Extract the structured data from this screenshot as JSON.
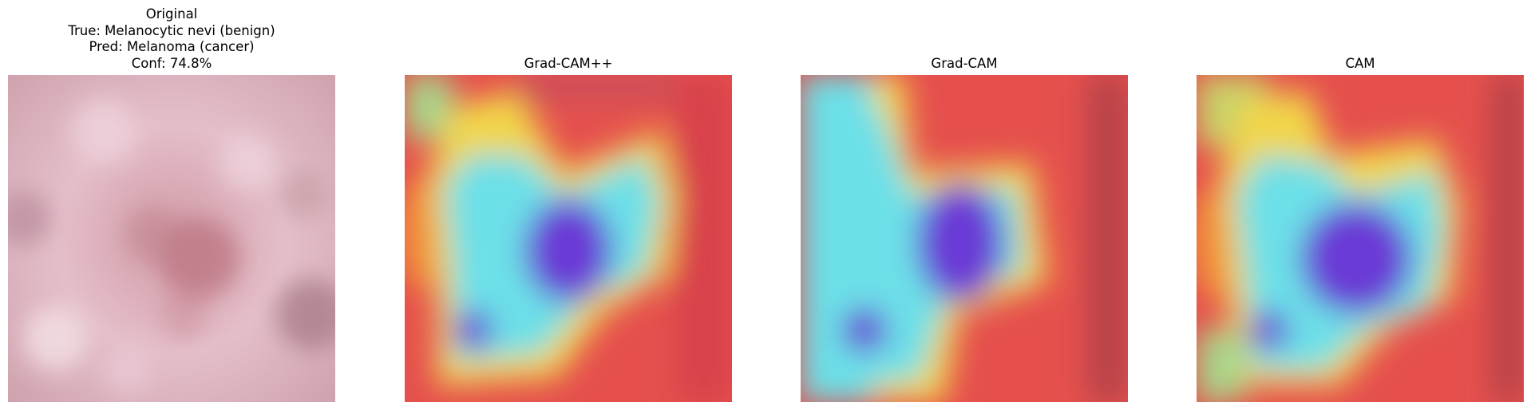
{
  "panels": [
    {
      "title_lines": [
        "Original",
        "True: Melanocytic nevi (benign)",
        "Pred: Melanoma (cancer)",
        "Conf: 74.8%"
      ],
      "kind": "image"
    },
    {
      "title_lines": [
        "Grad-CAM++"
      ],
      "kind": "heatmap"
    },
    {
      "title_lines": [
        "Grad-CAM"
      ],
      "kind": "heatmap"
    },
    {
      "title_lines": [
        "CAM"
      ],
      "kind": "heatmap"
    }
  ],
  "colors": {
    "skin_base": "#dfb8c3",
    "skin_spot": "#b8707c",
    "heat_hot": "#e84a4a",
    "heat_warm": "#f2d64a",
    "heat_mid": "#6ce0e8",
    "heat_cold": "#6a3ad6",
    "heat_edge": "#a8d68a"
  }
}
